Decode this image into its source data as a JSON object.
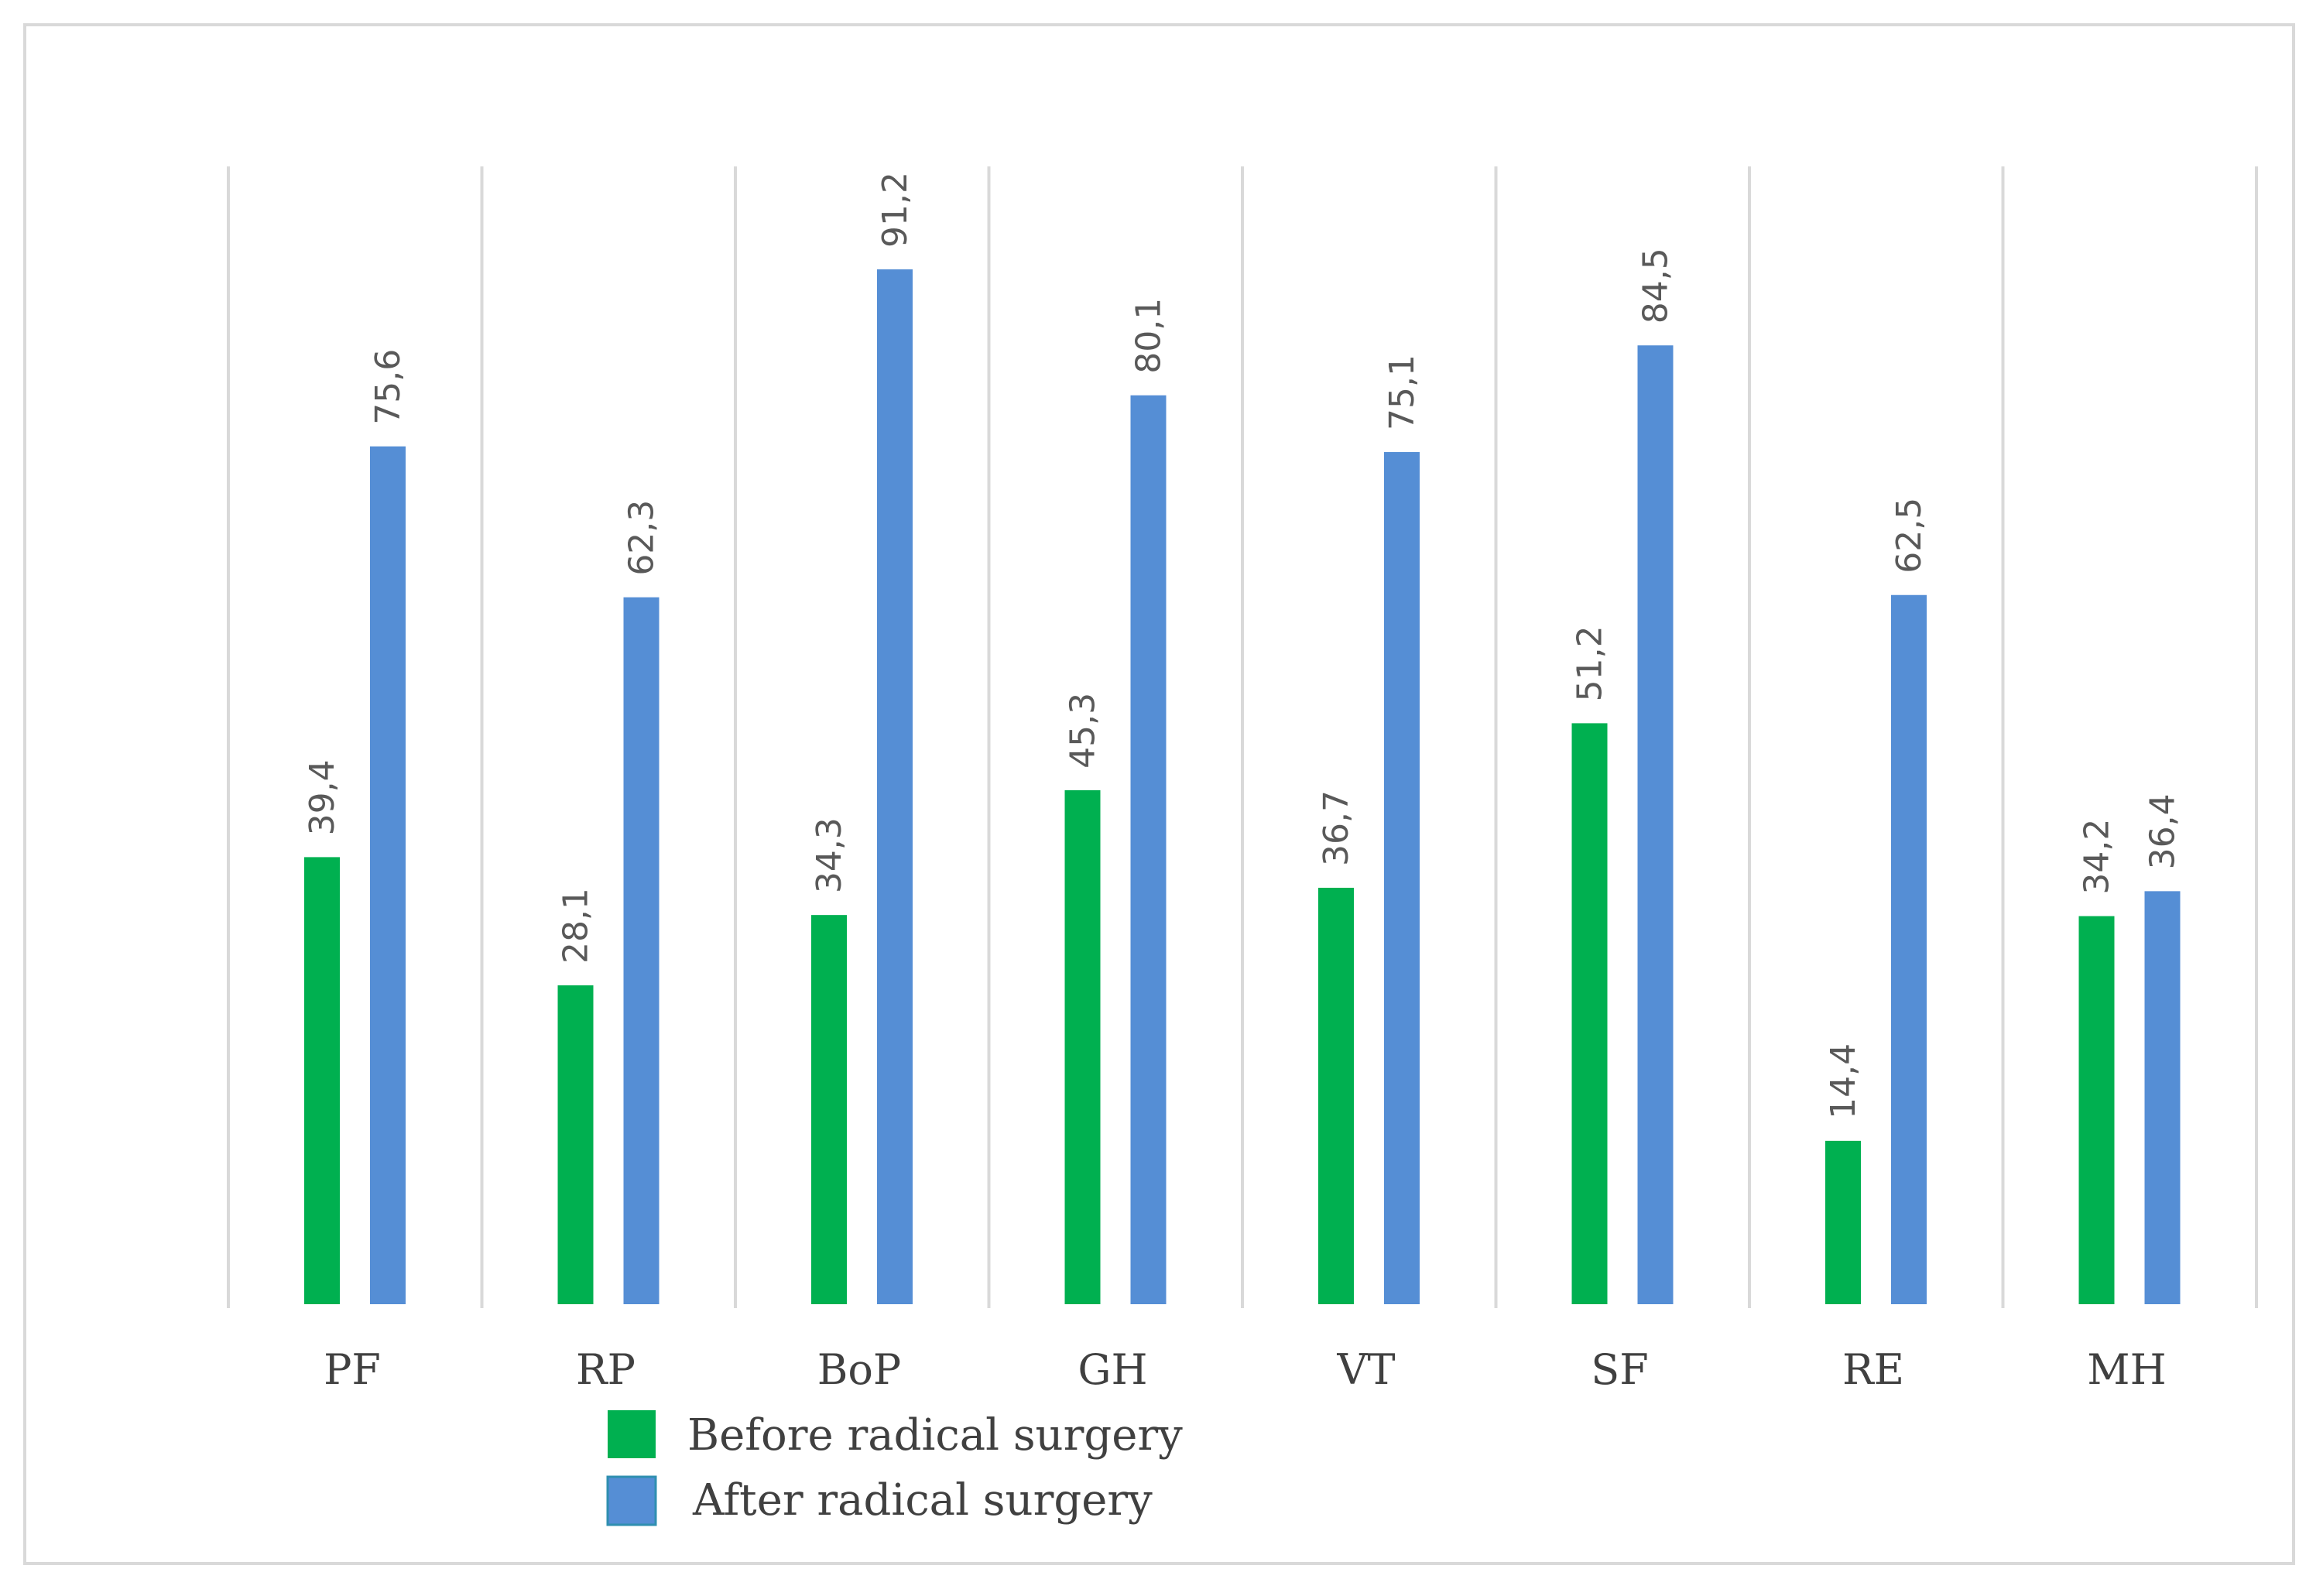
{
  "chart_data": {
    "type": "bar",
    "title": "",
    "xlabel": "",
    "ylabel": "",
    "ylim": [
      0,
      100
    ],
    "grid": "vertical-separators",
    "legend_position": "bottom",
    "categories": [
      "PF",
      "RP",
      "BoP",
      "GH",
      "VT",
      "SF",
      "RE",
      "MH"
    ],
    "series": [
      {
        "name": "Before radical surgery",
        "color": "#00b050",
        "values": [
          39.4,
          28.1,
          34.3,
          45.3,
          36.7,
          51.2,
          14.4,
          34.2
        ],
        "labels": [
          "39,4",
          "28,1",
          "34,3",
          "45,3",
          "36,7",
          "51,2",
          "14,4",
          "34,2"
        ]
      },
      {
        "name": "After radical surgery",
        "color": "#558ed5",
        "values": [
          75.6,
          62.3,
          91.2,
          80.1,
          75.1,
          84.5,
          62.5,
          36.4
        ],
        "labels": [
          "75,6",
          "62,3",
          "91,2",
          "80,1",
          "75,1",
          "84,5",
          "62,5",
          "36,4"
        ]
      }
    ]
  }
}
